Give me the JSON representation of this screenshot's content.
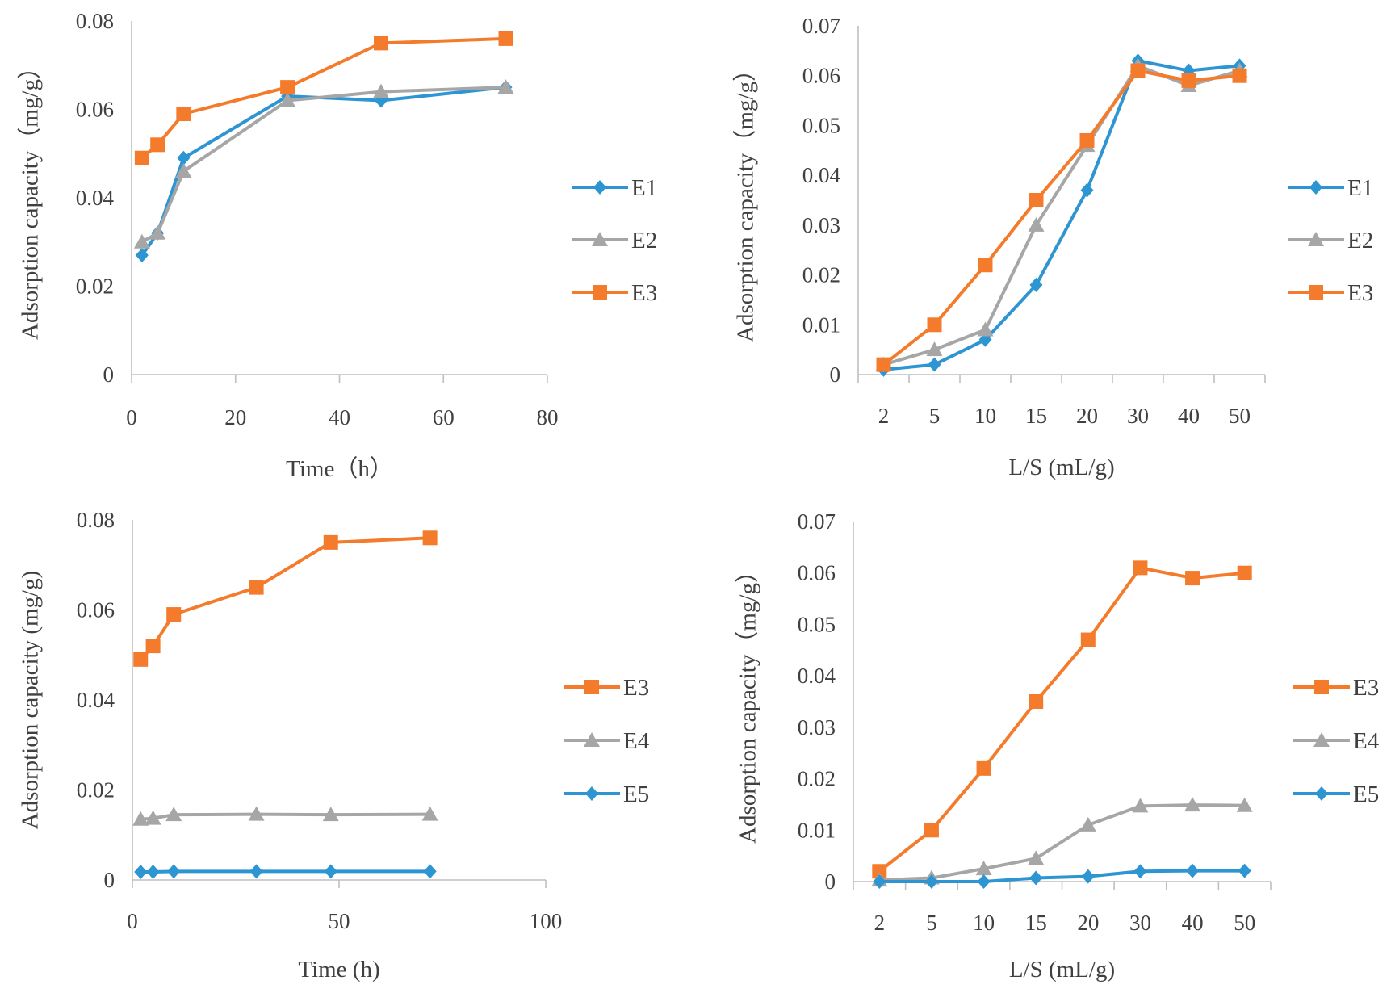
{
  "colors": {
    "E1": "#2e95d3",
    "E2": "#a6a6a6",
    "E3": "#f47b2b",
    "E4": "#a6a6a6",
    "E5": "#2e95d3"
  },
  "chart_data": [
    {
      "type": "line",
      "xaxis": "numeric",
      "xlabel": "Time（h）",
      "ylabel": "Adsorption capacity（mg/g）",
      "xlim": [
        0,
        80
      ],
      "xticks": [
        0,
        20,
        40,
        60,
        80
      ],
      "xtick_labels": [
        "0",
        "20",
        "40",
        "60",
        "80"
      ],
      "ylim": [
        0,
        0.08
      ],
      "yticks": [
        0,
        0.02,
        0.04,
        0.06,
        0.08
      ],
      "ytick_labels": [
        "0",
        "0.02",
        "0.04",
        "0.06",
        "0.08"
      ],
      "x": [
        2,
        5,
        10,
        30,
        48,
        72
      ],
      "series": [
        {
          "name": "E1",
          "marker": "diamond",
          "values": [
            0.027,
            0.032,
            0.049,
            0.063,
            0.062,
            0.065
          ]
        },
        {
          "name": "E2",
          "marker": "triangle",
          "values": [
            0.03,
            0.032,
            0.046,
            0.062,
            0.064,
            0.065
          ]
        },
        {
          "name": "E3",
          "marker": "square",
          "values": [
            0.049,
            0.052,
            0.059,
            0.065,
            0.075,
            0.076
          ]
        }
      ],
      "legend": "right"
    },
    {
      "type": "line",
      "xaxis": "category",
      "xlabel": "L/S (mL/g)",
      "ylabel": "Adsorption capacity（mg/g）",
      "categories": [
        "2",
        "5",
        "10",
        "15",
        "20",
        "30",
        "40",
        "50"
      ],
      "ylim": [
        0,
        0.07
      ],
      "yticks": [
        0,
        0.01,
        0.02,
        0.03,
        0.04,
        0.05,
        0.06,
        0.07
      ],
      "ytick_labels": [
        "0",
        "0.01",
        "0.02",
        "0.03",
        "0.04",
        "0.05",
        "0.06",
        "0.07"
      ],
      "series": [
        {
          "name": "E1",
          "marker": "diamond",
          "values": [
            0.001,
            0.002,
            0.007,
            0.018,
            0.037,
            0.063,
            0.061,
            0.062
          ]
        },
        {
          "name": "E2",
          "marker": "triangle",
          "values": [
            0.002,
            0.005,
            0.009,
            0.03,
            0.046,
            0.062,
            0.058,
            0.061
          ]
        },
        {
          "name": "E3",
          "marker": "square",
          "values": [
            0.002,
            0.01,
            0.022,
            0.035,
            0.047,
            0.061,
            0.059,
            0.06
          ]
        }
      ],
      "legend": "right"
    },
    {
      "type": "line",
      "xaxis": "numeric",
      "xlabel": "Time (h)",
      "ylabel": "Adsorption capacity (mg/g)",
      "xlim": [
        0,
        100
      ],
      "xticks": [
        0,
        50,
        100
      ],
      "xtick_labels": [
        "0",
        "50",
        "100"
      ],
      "ylim": [
        0,
        0.08
      ],
      "yticks": [
        0,
        0.02,
        0.04,
        0.06,
        0.08
      ],
      "ytick_labels": [
        "0",
        "0.02",
        "0.04",
        "0.06",
        "0.08"
      ],
      "x": [
        2,
        5,
        10,
        30,
        48,
        72
      ],
      "series": [
        {
          "name": "E3",
          "marker": "square",
          "values": [
            0.049,
            0.052,
            0.059,
            0.065,
            0.075,
            0.076
          ]
        },
        {
          "name": "E4",
          "marker": "triangle",
          "values": [
            0.0135,
            0.0137,
            0.0145,
            0.0146,
            0.0145,
            0.0146
          ]
        },
        {
          "name": "E5",
          "marker": "diamond",
          "values": [
            0.0018,
            0.0018,
            0.0019,
            0.0019,
            0.0019,
            0.0019
          ]
        }
      ],
      "legend": "right"
    },
    {
      "type": "line",
      "xaxis": "category",
      "xlabel": "L/S (mL/g)",
      "ylabel": "Adsorption capacity（mg/g）",
      "categories": [
        "2",
        "5",
        "10",
        "15",
        "20",
        "30",
        "40",
        "50"
      ],
      "ylim": [
        0,
        0.07
      ],
      "yticks": [
        0,
        0.01,
        0.02,
        0.03,
        0.04,
        0.05,
        0.06,
        0.07
      ],
      "ytick_labels": [
        "0",
        "0.01",
        "0.02",
        "0.03",
        "0.04",
        "0.05",
        "0.06",
        "0.07"
      ],
      "series": [
        {
          "name": "E3",
          "marker": "square",
          "values": [
            0.002,
            0.01,
            0.022,
            0.035,
            0.047,
            0.061,
            0.059,
            0.06
          ]
        },
        {
          "name": "E4",
          "marker": "triangle",
          "values": [
            0.0003,
            0.0007,
            0.0025,
            0.0045,
            0.011,
            0.0147,
            0.0149,
            0.0148
          ]
        },
        {
          "name": "E5",
          "marker": "diamond",
          "values": [
            0.0,
            0.0,
            0.0,
            0.0007,
            0.001,
            0.002,
            0.0021,
            0.0021
          ]
        }
      ],
      "legend": "right"
    }
  ]
}
